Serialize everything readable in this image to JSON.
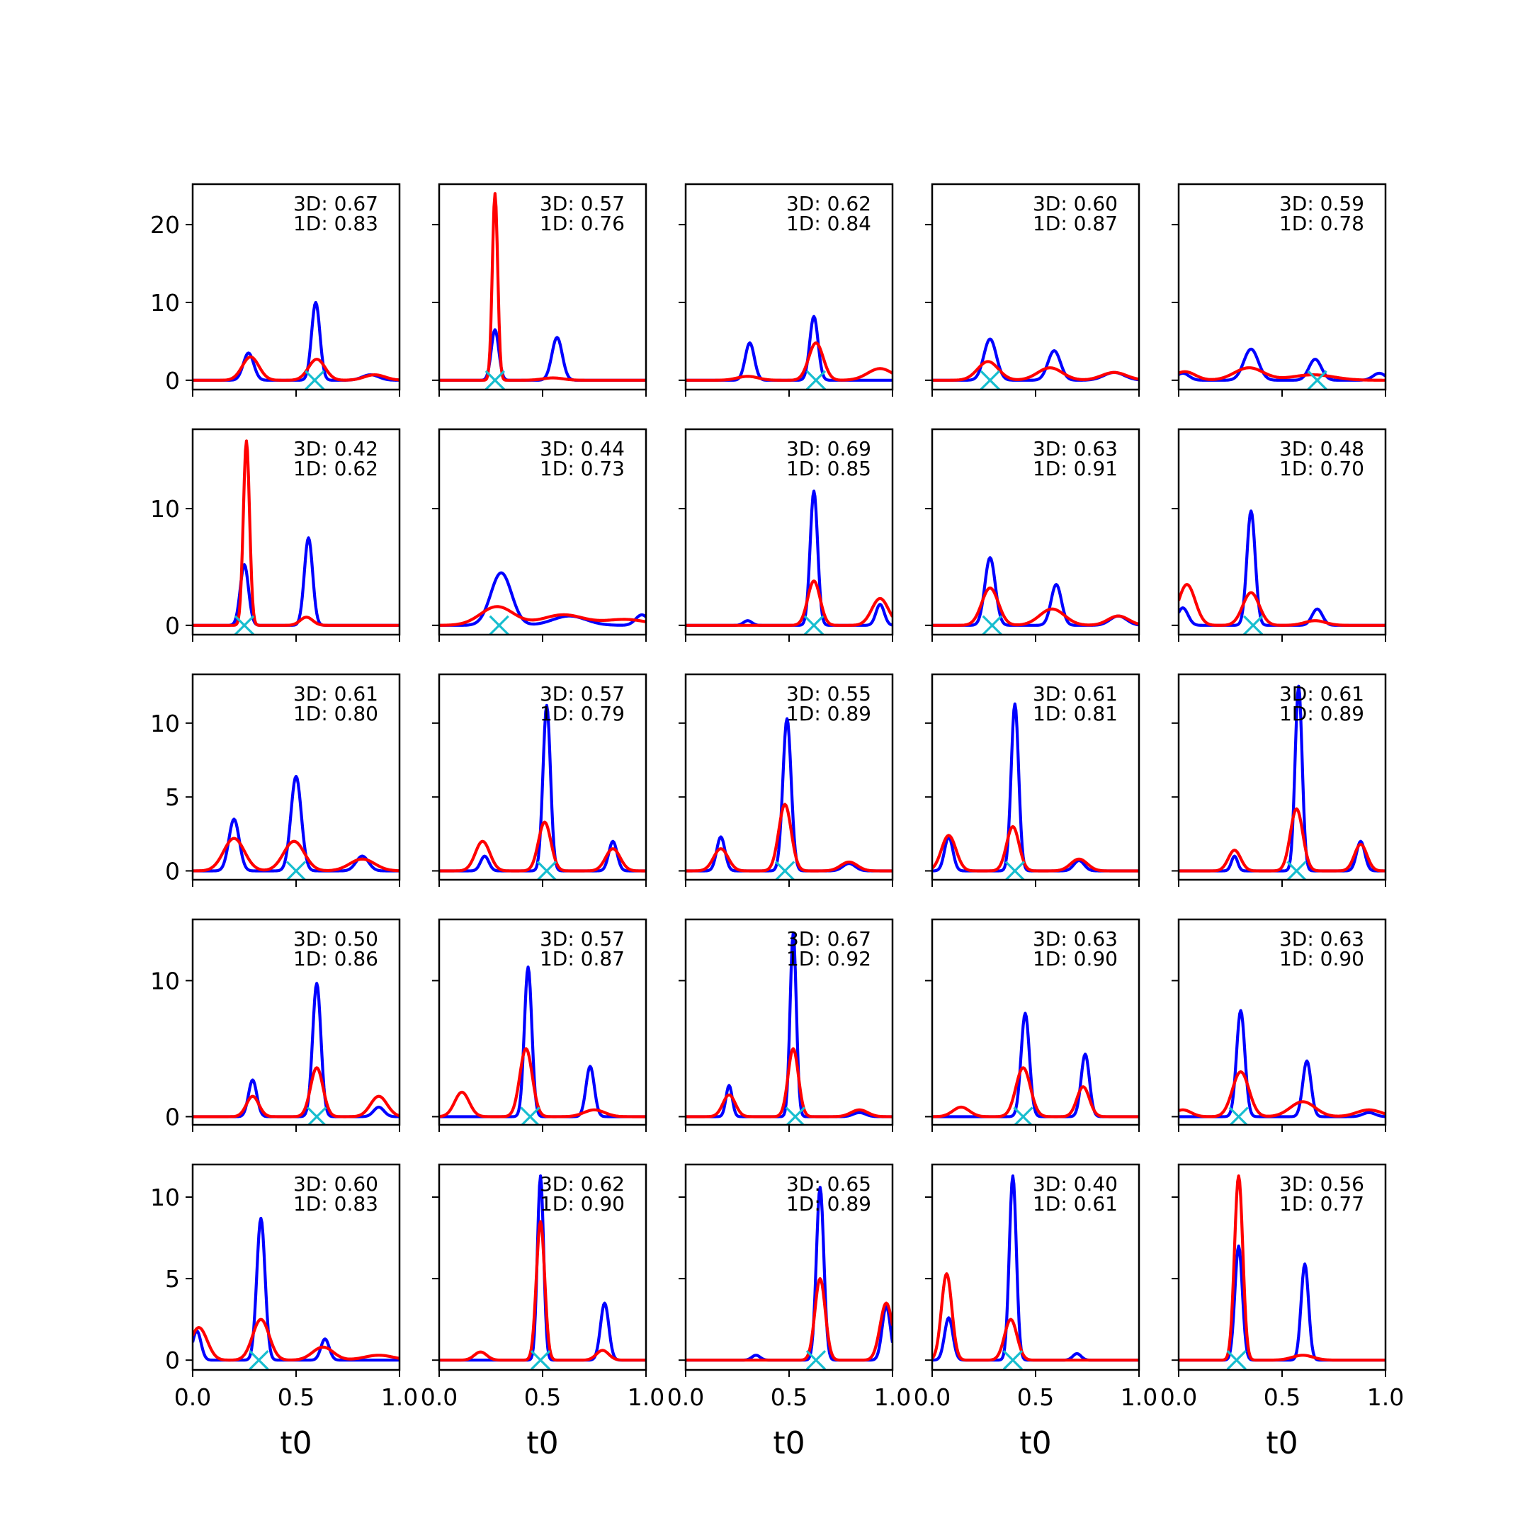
{
  "figure": {
    "rows": 5,
    "cols": 5,
    "x_tick_labels": [
      "0.0",
      "0.5",
      "1.0"
    ],
    "xlabel": "t0",
    "colors": {
      "blue_series": "#0000ff",
      "red_series": "#ff0000",
      "marker": "#17becf",
      "axes": "#000000"
    },
    "row_y_ticks": [
      [
        0,
        10,
        20
      ],
      [
        0,
        10
      ],
      [
        0,
        5,
        10
      ],
      [
        0,
        10
      ],
      [
        0,
        5,
        10
      ]
    ],
    "row_ylim": [
      [
        -1.2,
        25.2
      ],
      [
        -0.8,
        16.8
      ],
      [
        -0.6,
        13.3
      ],
      [
        -0.6,
        14.5
      ],
      [
        -0.6,
        12.0
      ]
    ]
  },
  "chart_data": [
    {
      "row": 0,
      "col": 0,
      "type": "line",
      "score_3d": "3D: 0.67",
      "score_1d": "1D: 0.83",
      "marker_x": 0.59,
      "blue": [
        [
          0.27,
          3.5,
          0.025
        ],
        [
          0.595,
          10.0,
          0.02
        ],
        [
          0.86,
          0.7,
          0.04
        ]
      ],
      "red": [
        [
          0.28,
          3.0,
          0.04
        ],
        [
          0.6,
          2.7,
          0.04
        ],
        [
          0.88,
          0.7,
          0.05
        ]
      ]
    },
    {
      "row": 0,
      "col": 1,
      "type": "line",
      "score_3d": "3D: 0.57",
      "score_1d": "1D: 0.76",
      "marker_x": 0.27,
      "blue": [
        [
          0.27,
          6.5,
          0.018
        ],
        [
          0.57,
          5.5,
          0.025
        ]
      ],
      "red": [
        [
          0.27,
          24.0,
          0.013
        ],
        [
          0.55,
          0.3,
          0.05
        ]
      ]
    },
    {
      "row": 0,
      "col": 2,
      "type": "line",
      "score_3d": "3D: 0.62",
      "score_1d": "1D: 0.84",
      "marker_x": 0.63,
      "blue": [
        [
          0.31,
          4.8,
          0.022
        ],
        [
          0.62,
          8.2,
          0.02
        ]
      ],
      "red": [
        [
          0.3,
          0.5,
          0.05
        ],
        [
          0.63,
          4.8,
          0.035
        ],
        [
          0.94,
          1.5,
          0.06
        ]
      ]
    },
    {
      "row": 0,
      "col": 3,
      "type": "line",
      "score_3d": "3D: 0.60",
      "score_1d": "1D: 0.87",
      "marker_x": 0.28,
      "blue": [
        [
          0.28,
          5.3,
          0.03
        ],
        [
          0.59,
          3.8,
          0.03
        ],
        [
          0.88,
          1.0,
          0.05
        ]
      ],
      "red": [
        [
          0.27,
          2.4,
          0.05
        ],
        [
          0.57,
          1.6,
          0.06
        ],
        [
          0.88,
          1.0,
          0.06
        ]
      ]
    },
    {
      "row": 0,
      "col": 4,
      "type": "line",
      "score_3d": "3D: 0.59",
      "score_1d": "1D: 0.78",
      "marker_x": 0.67,
      "blue": [
        [
          0.02,
          0.9,
          0.03
        ],
        [
          0.35,
          4.0,
          0.035
        ],
        [
          0.66,
          2.7,
          0.03
        ],
        [
          0.97,
          0.9,
          0.03
        ]
      ],
      "red": [
        [
          0.03,
          1.1,
          0.05
        ],
        [
          0.34,
          1.6,
          0.07
        ],
        [
          0.65,
          0.7,
          0.1
        ]
      ]
    },
    {
      "row": 1,
      "col": 0,
      "type": "line",
      "score_3d": "3D: 0.42",
      "score_1d": "1D: 0.62",
      "marker_x": 0.25,
      "blue": [
        [
          0.25,
          5.2,
          0.02
        ],
        [
          0.56,
          7.5,
          0.02
        ]
      ],
      "red": [
        [
          0.26,
          15.8,
          0.015
        ],
        [
          0.55,
          0.7,
          0.03
        ]
      ]
    },
    {
      "row": 1,
      "col": 1,
      "type": "line",
      "score_3d": "3D: 0.44",
      "score_1d": "1D: 0.73",
      "marker_x": 0.29,
      "blue": [
        [
          0.3,
          4.5,
          0.05
        ],
        [
          0.63,
          0.8,
          0.08
        ],
        [
          0.98,
          0.9,
          0.03
        ]
      ],
      "red": [
        [
          0.28,
          1.6,
          0.08
        ],
        [
          0.6,
          0.9,
          0.1
        ],
        [
          0.9,
          0.5,
          0.1
        ]
      ]
    },
    {
      "row": 1,
      "col": 2,
      "type": "line",
      "score_3d": "3D: 0.69",
      "score_1d": "1D: 0.85",
      "marker_x": 0.62,
      "blue": [
        [
          0.3,
          0.4,
          0.02
        ],
        [
          0.62,
          11.5,
          0.018
        ],
        [
          0.94,
          1.8,
          0.02
        ]
      ],
      "red": [
        [
          0.62,
          3.8,
          0.03
        ],
        [
          0.94,
          2.3,
          0.04
        ]
      ]
    },
    {
      "row": 1,
      "col": 3,
      "type": "line",
      "score_3d": "3D: 0.63",
      "score_1d": "1D: 0.91",
      "marker_x": 0.29,
      "blue": [
        [
          0.28,
          5.8,
          0.025
        ],
        [
          0.6,
          3.5,
          0.025
        ],
        [
          0.9,
          0.8,
          0.04
        ]
      ],
      "red": [
        [
          0.28,
          3.2,
          0.04
        ],
        [
          0.58,
          1.4,
          0.06
        ],
        [
          0.9,
          0.8,
          0.05
        ]
      ]
    },
    {
      "row": 1,
      "col": 4,
      "type": "line",
      "score_3d": "3D: 0.48",
      "score_1d": "1D: 0.70",
      "marker_x": 0.36,
      "blue": [
        [
          0.02,
          1.5,
          0.025
        ],
        [
          0.35,
          9.8,
          0.02
        ],
        [
          0.67,
          1.4,
          0.025
        ]
      ],
      "red": [
        [
          0.04,
          3.5,
          0.04
        ],
        [
          0.35,
          2.8,
          0.04
        ],
        [
          0.66,
          0.4,
          0.05
        ]
      ]
    },
    {
      "row": 2,
      "col": 0,
      "type": "line",
      "score_3d": "3D: 0.61",
      "score_1d": "1D: 0.80",
      "marker_x": 0.5,
      "blue": [
        [
          0.2,
          3.5,
          0.025
        ],
        [
          0.5,
          6.4,
          0.025
        ],
        [
          0.82,
          1.0,
          0.03
        ]
      ],
      "red": [
        [
          0.2,
          2.2,
          0.05
        ],
        [
          0.49,
          2.0,
          0.05
        ],
        [
          0.82,
          0.8,
          0.06
        ]
      ]
    },
    {
      "row": 2,
      "col": 1,
      "type": "line",
      "score_3d": "3D: 0.57",
      "score_1d": "1D: 0.79",
      "marker_x": 0.52,
      "blue": [
        [
          0.22,
          1.0,
          0.02
        ],
        [
          0.52,
          11.2,
          0.018
        ],
        [
          0.84,
          2.0,
          0.02
        ]
      ],
      "red": [
        [
          0.21,
          2.0,
          0.035
        ],
        [
          0.51,
          3.3,
          0.03
        ],
        [
          0.84,
          1.5,
          0.035
        ]
      ]
    },
    {
      "row": 2,
      "col": 2,
      "type": "line",
      "score_3d": "3D: 0.55",
      "score_1d": "1D: 0.89",
      "marker_x": 0.48,
      "blue": [
        [
          0.17,
          2.3,
          0.02
        ],
        [
          0.49,
          10.3,
          0.02
        ],
        [
          0.79,
          0.5,
          0.03
        ]
      ],
      "red": [
        [
          0.17,
          1.5,
          0.035
        ],
        [
          0.48,
          4.5,
          0.03
        ],
        [
          0.79,
          0.6,
          0.04
        ]
      ]
    },
    {
      "row": 2,
      "col": 3,
      "type": "line",
      "score_3d": "3D: 0.61",
      "score_1d": "1D: 0.81",
      "marker_x": 0.4,
      "blue": [
        [
          0.08,
          2.3,
          0.02
        ],
        [
          0.4,
          11.3,
          0.018
        ],
        [
          0.71,
          0.7,
          0.025
        ]
      ],
      "red": [
        [
          0.08,
          2.4,
          0.035
        ],
        [
          0.39,
          3.0,
          0.03
        ],
        [
          0.71,
          0.8,
          0.04
        ]
      ]
    },
    {
      "row": 2,
      "col": 4,
      "type": "line",
      "score_3d": "3D: 0.61",
      "score_1d": "1D: 0.89",
      "marker_x": 0.57,
      "blue": [
        [
          0.27,
          1.0,
          0.015
        ],
        [
          0.58,
          12.5,
          0.017
        ],
        [
          0.88,
          2.0,
          0.02
        ]
      ],
      "red": [
        [
          0.27,
          1.4,
          0.03
        ],
        [
          0.57,
          4.2,
          0.03
        ],
        [
          0.88,
          1.8,
          0.03
        ]
      ]
    },
    {
      "row": 3,
      "col": 0,
      "type": "line",
      "score_3d": "3D: 0.50",
      "score_1d": "1D: 0.86",
      "marker_x": 0.6,
      "blue": [
        [
          0.29,
          2.7,
          0.02
        ],
        [
          0.6,
          9.8,
          0.02
        ],
        [
          0.9,
          0.7,
          0.025
        ]
      ],
      "red": [
        [
          0.29,
          1.5,
          0.03
        ],
        [
          0.6,
          3.6,
          0.03
        ],
        [
          0.9,
          1.5,
          0.04
        ]
      ]
    },
    {
      "row": 3,
      "col": 1,
      "type": "line",
      "score_3d": "3D: 0.57",
      "score_1d": "1D: 0.87",
      "marker_x": 0.44,
      "blue": [
        [
          0.43,
          11.0,
          0.018
        ],
        [
          0.73,
          3.7,
          0.02
        ]
      ],
      "red": [
        [
          0.11,
          1.8,
          0.035
        ],
        [
          0.42,
          5.0,
          0.03
        ],
        [
          0.75,
          0.5,
          0.05
        ]
      ]
    },
    {
      "row": 3,
      "col": 2,
      "type": "line",
      "score_3d": "3D: 0.67",
      "score_1d": "1D: 0.92",
      "marker_x": 0.53,
      "blue": [
        [
          0.21,
          2.3,
          0.015
        ],
        [
          0.52,
          13.5,
          0.015
        ],
        [
          0.84,
          0.3,
          0.03
        ]
      ],
      "red": [
        [
          0.21,
          1.6,
          0.03
        ],
        [
          0.52,
          5.0,
          0.025
        ],
        [
          0.84,
          0.5,
          0.04
        ]
      ]
    },
    {
      "row": 3,
      "col": 3,
      "type": "line",
      "score_3d": "3D: 0.63",
      "score_1d": "1D: 0.90",
      "marker_x": 0.44,
      "blue": [
        [
          0.45,
          7.6,
          0.02
        ],
        [
          0.74,
          4.6,
          0.02
        ]
      ],
      "red": [
        [
          0.14,
          0.7,
          0.04
        ],
        [
          0.44,
          3.6,
          0.035
        ],
        [
          0.73,
          2.2,
          0.03
        ]
      ]
    },
    {
      "row": 3,
      "col": 4,
      "type": "line",
      "score_3d": "3D: 0.63",
      "score_1d": "1D: 0.90",
      "marker_x": 0.29,
      "blue": [
        [
          0.3,
          7.8,
          0.02
        ],
        [
          0.62,
          4.1,
          0.02
        ],
        [
          0.92,
          0.3,
          0.03
        ]
      ],
      "red": [
        [
          0.02,
          0.5,
          0.04
        ],
        [
          0.3,
          3.3,
          0.04
        ],
        [
          0.6,
          1.1,
          0.06
        ],
        [
          0.92,
          0.5,
          0.06
        ]
      ]
    },
    {
      "row": 4,
      "col": 0,
      "type": "line",
      "score_3d": "3D: 0.60",
      "score_1d": "1D: 0.83",
      "marker_x": 0.32,
      "blue": [
        [
          0.02,
          1.8,
          0.02
        ],
        [
          0.33,
          8.7,
          0.02
        ],
        [
          0.64,
          1.3,
          0.02
        ]
      ],
      "red": [
        [
          0.03,
          2.0,
          0.04
        ],
        [
          0.33,
          2.5,
          0.04
        ],
        [
          0.63,
          0.8,
          0.05
        ],
        [
          0.9,
          0.3,
          0.07
        ]
      ]
    },
    {
      "row": 4,
      "col": 1,
      "type": "line",
      "score_3d": "3D: 0.62",
      "score_1d": "1D: 0.90",
      "marker_x": 0.49,
      "blue": [
        [
          0.49,
          11.3,
          0.015
        ],
        [
          0.8,
          3.5,
          0.02
        ]
      ],
      "red": [
        [
          0.2,
          0.5,
          0.03
        ],
        [
          0.49,
          8.5,
          0.02
        ],
        [
          0.79,
          0.6,
          0.03
        ]
      ]
    },
    {
      "row": 4,
      "col": 2,
      "type": "line",
      "score_3d": "3D: 0.65",
      "score_1d": "1D: 0.89",
      "marker_x": 0.63,
      "blue": [
        [
          0.34,
          0.3,
          0.02
        ],
        [
          0.65,
          10.6,
          0.018
        ],
        [
          0.97,
          3.3,
          0.02
        ]
      ],
      "red": [
        [
          0.65,
          5.0,
          0.025
        ],
        [
          0.97,
          3.5,
          0.03
        ]
      ]
    },
    {
      "row": 4,
      "col": 3,
      "type": "line",
      "score_3d": "3D: 0.40",
      "score_1d": "1D: 0.61",
      "marker_x": 0.39,
      "blue": [
        [
          0.08,
          2.6,
          0.02
        ],
        [
          0.39,
          11.3,
          0.017
        ],
        [
          0.7,
          0.4,
          0.02
        ]
      ],
      "red": [
        [
          0.07,
          5.3,
          0.025
        ],
        [
          0.38,
          2.5,
          0.03
        ]
      ]
    },
    {
      "row": 4,
      "col": 4,
      "type": "line",
      "score_3d": "3D: 0.56",
      "score_1d": "1D: 0.77",
      "marker_x": 0.28,
      "blue": [
        [
          0.29,
          7.0,
          0.018
        ],
        [
          0.61,
          5.9,
          0.018
        ]
      ],
      "red": [
        [
          0.29,
          11.3,
          0.02
        ],
        [
          0.6,
          0.3,
          0.05
        ]
      ]
    }
  ]
}
